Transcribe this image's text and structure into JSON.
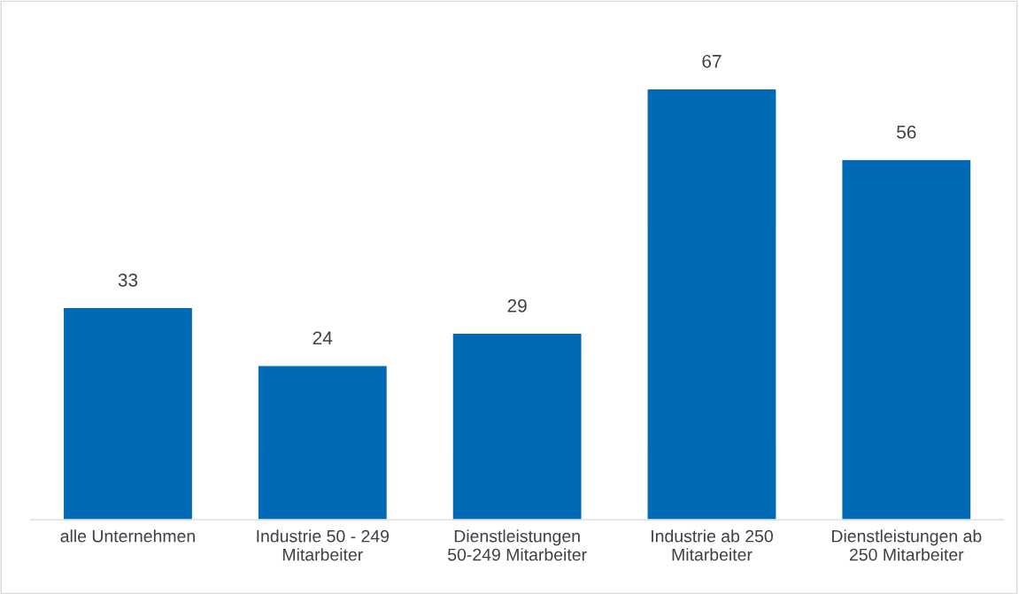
{
  "chart_data": {
    "type": "bar",
    "categories": [
      "alle Unternehmen",
      "Industrie 50 - 249\nMitarbeiter",
      "Dienstleistungen\n50-249 Mitarbeiter",
      "Industrie ab 250\nMitarbeiter",
      "Dienstleistungen ab\n250 Mitarbeiter"
    ],
    "values": [
      33,
      24,
      29,
      67,
      56
    ],
    "color": "#006ab4",
    "data_labels": true,
    "grid": false,
    "legend": false,
    "tick_labels": "x"
  }
}
